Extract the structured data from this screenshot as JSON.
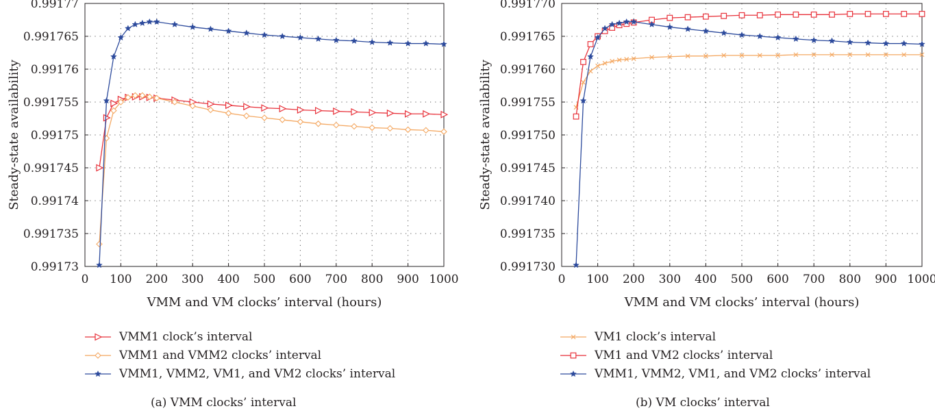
{
  "chart_data": [
    {
      "type": "line",
      "panel_id": "a",
      "ylabel": "Steady-state availability",
      "xlabel": "VMM and VM clocks’ interval (hours)",
      "caption": "(a)  VMM clocks’ interval",
      "xlim": [
        0,
        1000
      ],
      "ylim": [
        0.99173,
        0.99177
      ],
      "x_ticks": [
        0,
        100,
        200,
        300,
        400,
        500,
        600,
        700,
        800,
        900,
        1000
      ],
      "x_tick_labels": [
        "0",
        "100",
        "200",
        "300",
        "400",
        "500",
        "600",
        "700",
        "800",
        "900",
        "1000"
      ],
      "y_ticks": [
        0.99173,
        0.991735,
        0.99174,
        0.991745,
        0.99175,
        0.991755,
        0.99176,
        0.991765,
        0.99177
      ],
      "y_tick_labels": [
        "0.99173",
        "0.991735",
        "0.99174",
        "0.991745",
        "0.99175",
        "0.991755",
        "0.99176",
        "0.991765",
        "0.99177"
      ],
      "grid": true,
      "legend_position": "below",
      "series": [
        {
          "name": "VMM1 clock’s interval",
          "color": "#e8313a",
          "marker": "triangle-right",
          "x": [
            40,
            60,
            80,
            100,
            120,
            140,
            160,
            180,
            200,
            250,
            300,
            350,
            400,
            450,
            500,
            550,
            600,
            650,
            700,
            750,
            800,
            850,
            900,
            950,
            1000
          ],
          "y": [
            0.991745,
            0.9917526,
            0.9917548,
            0.9917554,
            0.9917557,
            0.9917558,
            0.9917558,
            0.9917557,
            0.9917556,
            0.9917553,
            0.991755,
            0.9917547,
            0.9917545,
            0.9917543,
            0.9917541,
            0.991754,
            0.9917538,
            0.9917537,
            0.9917536,
            0.9917535,
            0.9917534,
            0.9917533,
            0.9917532,
            0.9917532,
            0.9917531
          ]
        },
        {
          "name": "VMM1 and VMM2 clocks’ interval",
          "color": "#f4a862",
          "marker": "diamond",
          "x": [
            40,
            60,
            80,
            100,
            120,
            140,
            160,
            180,
            200,
            250,
            300,
            350,
            400,
            450,
            500,
            550,
            600,
            650,
            700,
            750,
            800,
            850,
            900,
            950,
            1000
          ],
          "y": [
            0.9917334,
            0.9917495,
            0.9917537,
            0.991755,
            0.9917557,
            0.991756,
            0.991756,
            0.9917558,
            0.9917556,
            0.991755,
            0.9917544,
            0.9917538,
            0.9917533,
            0.9917529,
            0.9917526,
            0.9917523,
            0.991752,
            0.9917517,
            0.9917515,
            0.9917513,
            0.9917511,
            0.991751,
            0.9917508,
            0.9917507,
            0.9917505
          ]
        },
        {
          "name": "VMM1, VMM2, VM1, and VM2 clocks’ interval",
          "color": "#2c4a9c",
          "marker": "star",
          "x": [
            40,
            60,
            80,
            100,
            120,
            140,
            160,
            180,
            200,
            250,
            300,
            350,
            400,
            450,
            500,
            550,
            600,
            650,
            700,
            750,
            800,
            850,
            900,
            950,
            1000
          ],
          "y": [
            0.9917302,
            0.9917552,
            0.9917619,
            0.9917648,
            0.9917662,
            0.9917668,
            0.991767,
            0.9917672,
            0.9917672,
            0.9917668,
            0.9917664,
            0.9917661,
            0.9917658,
            0.9917655,
            0.9917652,
            0.991765,
            0.9917648,
            0.9917646,
            0.9917644,
            0.9917643,
            0.9917641,
            0.991764,
            0.9917639,
            0.9917639,
            0.9917638
          ]
        }
      ]
    },
    {
      "type": "line",
      "panel_id": "b",
      "ylabel": "Steady-state availability",
      "xlabel": "VMM and VM clocks’ interval (hours)",
      "caption": "(b)  VM clocks’ interval",
      "xlim": [
        0,
        1000
      ],
      "ylim": [
        0.99173,
        0.99177
      ],
      "x_ticks": [
        0,
        100,
        200,
        300,
        400,
        500,
        600,
        700,
        800,
        900,
        1000
      ],
      "x_tick_labels": [
        "0",
        "100",
        "200",
        "300",
        "400",
        "500",
        "600",
        "700",
        "800",
        "900",
        "1000"
      ],
      "y_ticks": [
        0.99173,
        0.991735,
        0.99174,
        0.991745,
        0.99175,
        0.991755,
        0.99176,
        0.991765,
        0.99177
      ],
      "y_tick_labels": [
        "0.991730",
        "0.991735",
        "0.991740",
        "0.991745",
        "0.991750",
        "0.991755",
        "0.991760",
        "0.991765",
        "0.991770"
      ],
      "grid": true,
      "legend_position": "below",
      "series": [
        {
          "name": "VM1 clock’s interval",
          "color": "#f4a862",
          "marker": "x",
          "x": [
            40,
            60,
            80,
            100,
            120,
            140,
            160,
            180,
            200,
            250,
            300,
            350,
            400,
            450,
            500,
            550,
            600,
            650,
            700,
            750,
            800,
            850,
            900,
            950,
            1000
          ],
          "y": [
            0.9917542,
            0.991758,
            0.9917597,
            0.9917605,
            0.9917609,
            0.9917612,
            0.9917614,
            0.9917615,
            0.9917616,
            0.9917618,
            0.9917619,
            0.991762,
            0.991762,
            0.9917621,
            0.9917621,
            0.9917621,
            0.9917621,
            0.9917622,
            0.9917622,
            0.9917622,
            0.9917622,
            0.9917622,
            0.9917622,
            0.9917622,
            0.9917622
          ]
        },
        {
          "name": "VM1 and VM2 clocks’ interval",
          "color": "#e8313a",
          "marker": "square",
          "x": [
            40,
            60,
            80,
            100,
            120,
            140,
            160,
            180,
            200,
            250,
            300,
            350,
            400,
            450,
            500,
            550,
            600,
            650,
            700,
            750,
            800,
            850,
            900,
            950,
            1000
          ],
          "y": [
            0.9917528,
            0.9917611,
            0.9917638,
            0.991765,
            0.9917658,
            0.9917663,
            0.9917667,
            0.9917669,
            0.9917671,
            0.9917675,
            0.9917678,
            0.9917679,
            0.991768,
            0.9917681,
            0.9917682,
            0.9917682,
            0.9917683,
            0.9917683,
            0.9917683,
            0.9917683,
            0.9917684,
            0.9917684,
            0.9917684,
            0.9917684,
            0.9917684
          ]
        },
        {
          "name": "VMM1, VMM2, VM1, and VM2 clocks’ interval",
          "color": "#2c4a9c",
          "marker": "star",
          "x": [
            40,
            60,
            80,
            100,
            120,
            140,
            160,
            180,
            200,
            250,
            300,
            350,
            400,
            450,
            500,
            550,
            600,
            650,
            700,
            750,
            800,
            850,
            900,
            950,
            1000
          ],
          "y": [
            0.9917302,
            0.9917552,
            0.9917619,
            0.9917648,
            0.9917662,
            0.9917668,
            0.991767,
            0.9917672,
            0.9917672,
            0.9917668,
            0.9917664,
            0.9917661,
            0.9917658,
            0.9917655,
            0.9917652,
            0.991765,
            0.9917648,
            0.9917646,
            0.9917644,
            0.9917643,
            0.9917641,
            0.991764,
            0.9917639,
            0.9917639,
            0.9917638
          ]
        }
      ]
    }
  ]
}
